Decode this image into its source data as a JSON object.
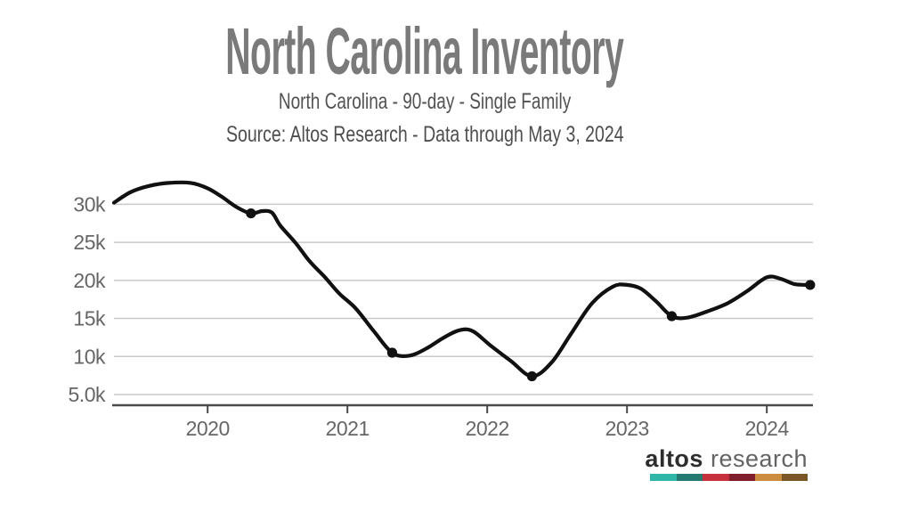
{
  "header": {
    "title": "North Carolina Inventory",
    "subtitle": "North Carolina - 90-day - Single Family",
    "source": "Source: Altos Research - Data through May 3, 2024"
  },
  "chart_data": {
    "type": "line",
    "title": "North Carolina Inventory",
    "xlabel": "",
    "ylabel": "",
    "y_unit": "thousands of listings",
    "xlim": [
      2019.33,
      2024.33
    ],
    "ylim": [
      3.6,
      33.9
    ],
    "grid": "horizontal",
    "legend": "none",
    "series": [
      {
        "name": "Single Family Inventory (90-day)",
        "x": [
          2019.33,
          2019.45,
          2019.58,
          2019.72,
          2019.88,
          2020.0,
          2020.1,
          2020.21,
          2020.31,
          2020.39,
          2020.46,
          2020.52,
          2020.63,
          2020.73,
          2020.84,
          2020.94,
          2021.06,
          2021.19,
          2021.32,
          2021.44,
          2021.56,
          2021.7,
          2021.81,
          2021.9,
          2022.02,
          2022.17,
          2022.32,
          2022.46,
          2022.6,
          2022.75,
          2022.9,
          2023.0,
          2023.1,
          2023.21,
          2023.32,
          2023.43,
          2023.57,
          2023.72,
          2023.86,
          2024.0,
          2024.1,
          2024.2,
          2024.31
        ],
        "y": [
          30.2,
          31.6,
          32.4,
          32.8,
          32.8,
          32.1,
          31.0,
          29.6,
          28.8,
          29.1,
          28.9,
          27.2,
          24.9,
          22.5,
          20.4,
          18.3,
          16.3,
          13.3,
          10.5,
          10.1,
          11.0,
          12.6,
          13.5,
          13.3,
          11.5,
          9.4,
          7.4,
          9.2,
          13.0,
          17.0,
          19.2,
          19.4,
          18.9,
          17.2,
          15.3,
          15.1,
          15.9,
          17.0,
          18.6,
          20.4,
          20.2,
          19.5,
          19.4
        ]
      }
    ],
    "markers": {
      "x": [
        2020.31,
        2021.32,
        2022.32,
        2023.32,
        2024.31
      ],
      "y": [
        28.8,
        10.5,
        7.4,
        15.3,
        19.4
      ]
    },
    "yticks": [
      {
        "value": 5,
        "label": "5.0k"
      },
      {
        "value": 10,
        "label": "10k"
      },
      {
        "value": 15,
        "label": "15k"
      },
      {
        "value": 20,
        "label": "20k"
      },
      {
        "value": 25,
        "label": "25k"
      },
      {
        "value": 30,
        "label": "30k"
      }
    ],
    "xticks": [
      {
        "value": 2020,
        "label": "2020"
      },
      {
        "value": 2021,
        "label": "2021"
      },
      {
        "value": 2022,
        "label": "2022"
      },
      {
        "value": 2023,
        "label": "2023"
      },
      {
        "value": 2024,
        "label": "2024"
      }
    ],
    "colors": {
      "line": "#111111",
      "marker": "#111111",
      "grid": "#c9c9c9",
      "axis": "#4a4a4a",
      "tick_label": "#666666"
    }
  },
  "logo": {
    "brand_bold": "altos",
    "brand_light": "research",
    "bar_colors": [
      "#2eb6a6",
      "#26796f",
      "#c5303c",
      "#7f1f2b",
      "#c98d3d",
      "#7b5626"
    ]
  }
}
